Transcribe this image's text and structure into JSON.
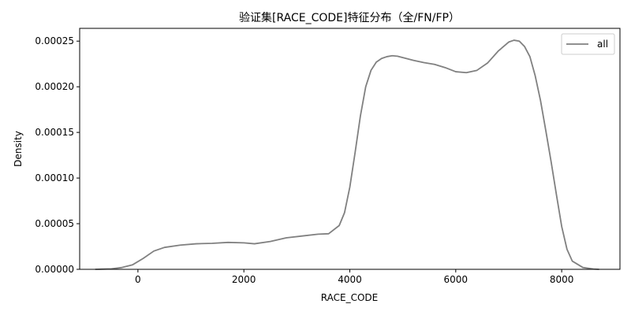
{
  "chart_data": {
    "type": "line",
    "title": "验证集[RACE_CODE]特征分布（全/FN/FP）",
    "xlabel": "RACE_CODE",
    "ylabel": "Density",
    "xlim": [
      -1100,
      9100
    ],
    "ylim": [
      0,
      0.000264
    ],
    "x_ticks": [
      0,
      2000,
      4000,
      6000,
      8000
    ],
    "x_tick_labels": [
      "0",
      "2000",
      "4000",
      "6000",
      "8000"
    ],
    "y_ticks": [
      0,
      5e-05,
      0.0001,
      0.00015,
      0.0002,
      0.00025
    ],
    "y_tick_labels": [
      "0.00000",
      "0.00005",
      "0.00010",
      "0.00015",
      "0.00020",
      "0.00025"
    ],
    "grid": false,
    "legend": {
      "position": "top-right",
      "entries": [
        "all"
      ]
    },
    "series": [
      {
        "name": "all",
        "color": "#808080",
        "x": [
          -800,
          -500,
          -300,
          -100,
          100,
          300,
          500,
          800,
          1100,
          1400,
          1700,
          2000,
          2200,
          2500,
          2800,
          3100,
          3400,
          3600,
          3800,
          3900,
          4000,
          4100,
          4200,
          4300,
          4400,
          4500,
          4600,
          4700,
          4800,
          4900,
          5000,
          5200,
          5400,
          5600,
          5800,
          6000,
          6200,
          6400,
          6600,
          6800,
          7000,
          7100,
          7200,
          7300,
          7400,
          7500,
          7600,
          7700,
          7800,
          7900,
          8000,
          8100,
          8200,
          8400,
          8600,
          8700
        ],
        "y": [
          0,
          5e-07,
          2e-06,
          5e-06,
          1.2e-05,
          2e-05,
          2.4e-05,
          2.65e-05,
          2.8e-05,
          2.85e-05,
          2.95e-05,
          2.9e-05,
          2.8e-05,
          3.05e-05,
          3.45e-05,
          3.65e-05,
          3.85e-05,
          3.9e-05,
          4.8e-05,
          6.2e-05,
          9e-05,
          0.000128,
          0.000168,
          0.0002,
          0.000218,
          0.000227,
          0.000231,
          0.000233,
          0.000234,
          0.0002335,
          0.000232,
          0.000229,
          0.0002265,
          0.0002245,
          0.000221,
          0.0002165,
          0.0002155,
          0.000218,
          0.000226,
          0.000239,
          0.000249,
          0.000251,
          0.00025,
          0.000244,
          0.000233,
          0.000212,
          0.000185,
          0.000152,
          0.000118,
          8.2e-05,
          4.7e-05,
          2.2e-05,
          9e-06,
          2e-06,
          3e-07,
          0
        ]
      }
    ]
  }
}
